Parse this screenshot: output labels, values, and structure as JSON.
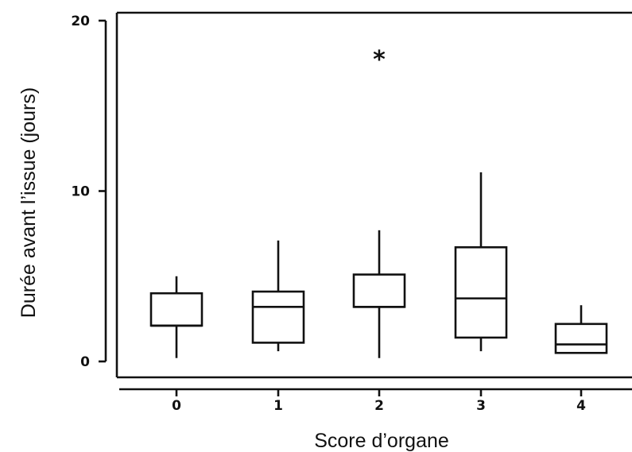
{
  "chart_data": {
    "type": "box",
    "title": "",
    "xlabel": "Score d’organe",
    "ylabel": "Durée avant l’issue (jours)",
    "ylim": [
      0,
      20
    ],
    "yticks": [
      0,
      10,
      20
    ],
    "categories": [
      "0",
      "1",
      "2",
      "3",
      "4"
    ],
    "boxes": [
      {
        "category": "0",
        "whisker_low": 0.2,
        "q1": 2.1,
        "median": 2.1,
        "q3": 4.0,
        "whisker_high": 5.0
      },
      {
        "category": "1",
        "whisker_low": 0.6,
        "q1": 1.1,
        "median": 3.2,
        "q3": 4.1,
        "whisker_high": 7.1
      },
      {
        "category": "2",
        "whisker_low": 0.2,
        "q1": 3.2,
        "median": 3.2,
        "q3": 5.1,
        "whisker_high": 7.7
      },
      {
        "category": "3",
        "whisker_low": 0.6,
        "q1": 1.4,
        "median": 3.7,
        "q3": 6.7,
        "whisker_high": 11.1
      },
      {
        "category": "4",
        "whisker_low": 0.5,
        "q1": 0.5,
        "median": 1.0,
        "q3": 2.2,
        "whisker_high": 3.3
      }
    ],
    "outliers": [
      {
        "category": "2",
        "y": 18.0,
        "symbol": "*"
      }
    ],
    "grid": false,
    "legend": "none"
  }
}
